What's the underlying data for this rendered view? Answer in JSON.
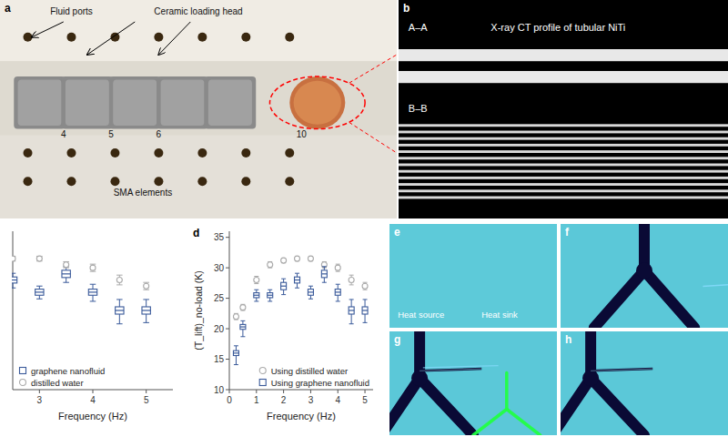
{
  "chart_data": [
    {
      "type": "illustration",
      "title": "a",
      "annotations": [
        "Fluid ports",
        "Ceramic loading head",
        "SMA elements",
        "4",
        "5",
        "6",
        "10"
      ]
    },
    {
      "type": "illustration",
      "title": "b",
      "color": "#000000",
      "annotations": [
        "A–A",
        "X-ray CT profile of tubular NiTi",
        "B–B"
      ]
    },
    {
      "type": "box_errorbar",
      "xlabel": "Frequency (Hz)",
      "xlim": [
        2.5,
        5.5
      ],
      "ylim": [
        10,
        36
      ],
      "xticks": [
        3,
        4,
        5
      ],
      "tick_labels": "x",
      "legend": "lower left",
      "grid": false,
      "series": [
        {
          "name": "graphene nanofluid",
          "type": "box",
          "marker": "square",
          "color": "#3a5a9a",
          "x": [
            2.5,
            3.0,
            3.5,
            4.0,
            4.5,
            5.0
          ],
          "values": [
            28.0,
            26.0,
            29.0,
            26.0,
            23.0,
            23.0
          ],
          "q1": [
            27.5,
            25.5,
            28.4,
            25.5,
            22.4,
            22.4
          ],
          "q3": [
            28.5,
            26.5,
            29.6,
            26.5,
            23.6,
            23.6
          ],
          "min": [
            26.7,
            24.9,
            27.6,
            24.5,
            20.8,
            21.0
          ],
          "max": [
            29.1,
            27.0,
            30.2,
            27.3,
            24.8,
            24.8
          ]
        },
        {
          "name": "distilled water",
          "type": "errorbar",
          "marker": "circle",
          "color": "#aaaaaa",
          "x": [
            2.5,
            3.0,
            3.5,
            4.0,
            4.5,
            5.0
          ],
          "values": [
            31.5,
            31.5,
            30.5,
            30.0,
            28.0,
            27.0
          ],
          "errors": [
            0.4,
            0.4,
            0.5,
            0.6,
            0.8,
            0.6
          ]
        }
      ]
    },
    {
      "type": "box_errorbar",
      "title": "d",
      "xlabel": "Frequency (Hz)",
      "ylabel": "(T_lift)_no-load (K)",
      "xlim": [
        0,
        5.3
      ],
      "ylim": [
        10,
        36
      ],
      "xticks": [
        0,
        1,
        2,
        3,
        4,
        5
      ],
      "yticks": [
        10,
        15,
        20,
        25,
        30,
        35
      ],
      "legend": "lower right",
      "grid": false,
      "series": [
        {
          "name": "Using distilled water",
          "type": "errorbar",
          "marker": "circle",
          "color": "#aaaaaa",
          "x": [
            0.25,
            0.5,
            1.0,
            1.5,
            2.0,
            2.5,
            3.0,
            3.5,
            4.0,
            4.5,
            5.0
          ],
          "values": [
            22.0,
            23.5,
            28.0,
            30.5,
            31.2,
            31.5,
            31.5,
            30.5,
            30.0,
            28.0,
            27.0
          ],
          "errors": [
            0.5,
            0.5,
            0.6,
            0.5,
            0.4,
            0.4,
            0.4,
            0.5,
            0.6,
            0.8,
            0.6
          ]
        },
        {
          "name": "Using graphene nanofluid",
          "type": "box",
          "marker": "square",
          "color": "#3a5a9a",
          "x": [
            0.25,
            0.5,
            1.0,
            1.5,
            2.0,
            2.5,
            3.0,
            3.5,
            4.0,
            4.5,
            5.0
          ],
          "values": [
            16.0,
            20.3,
            25.5,
            25.5,
            27.0,
            28.0,
            26.0,
            29.0,
            26.0,
            23.0,
            23.0
          ],
          "q1": [
            15.6,
            19.9,
            25.1,
            25.1,
            26.4,
            27.5,
            25.5,
            28.4,
            25.5,
            22.4,
            22.4
          ],
          "q3": [
            16.4,
            20.7,
            25.9,
            25.9,
            27.6,
            28.5,
            26.5,
            29.6,
            26.5,
            23.6,
            23.6
          ],
          "min": [
            14.1,
            18.7,
            24.5,
            24.5,
            25.6,
            26.7,
            24.9,
            27.6,
            24.5,
            20.8,
            21.0
          ],
          "max": [
            17.2,
            21.3,
            26.4,
            26.4,
            28.2,
            29.1,
            27.0,
            30.2,
            27.3,
            24.8,
            24.8
          ]
        }
      ]
    },
    {
      "type": "illustration",
      "title": "e",
      "color": "#5bc8d8",
      "annotations": [
        "Heat source",
        "Heat sink"
      ]
    },
    {
      "type": "illustration",
      "title": "f",
      "color": "#5bc8d8"
    },
    {
      "type": "illustration",
      "title": "g",
      "color": "#5bc8d8"
    },
    {
      "type": "illustration",
      "title": "h",
      "color": "#5bc8d8"
    }
  ]
}
